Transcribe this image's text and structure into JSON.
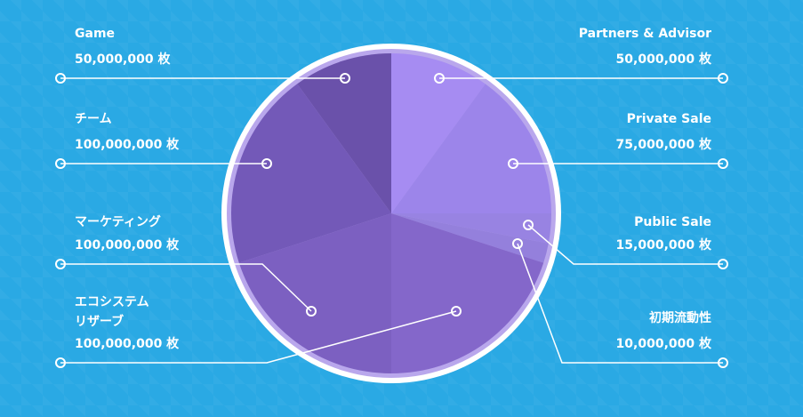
{
  "chart_data": {
    "type": "pie",
    "categories": [
      "Partners & Advisor",
      "Private Sale",
      "Public Sale",
      "初期流動性",
      "エコシステム\nリザーブ",
      "マーケティング",
      "チーム",
      "Game"
    ],
    "values": [
      50000000,
      75000000,
      15000000,
      10000000,
      100000000,
      100000000,
      100000000,
      50000000
    ],
    "value_labels": [
      "50,000,000 枚",
      "75,000,000 枚",
      "15,000,000 枚",
      "10,000,000 枚",
      "100,000,000 枚",
      "100,000,000 枚",
      "100,000,000 枚",
      "50,000,000 枚"
    ],
    "colors": [
      "#a68cf2",
      "#9c85ea",
      "#9883e2",
      "#9480dc",
      "#8467ca",
      "#7c60c1",
      "#7359b8",
      "#6a51aa"
    ]
  }
}
